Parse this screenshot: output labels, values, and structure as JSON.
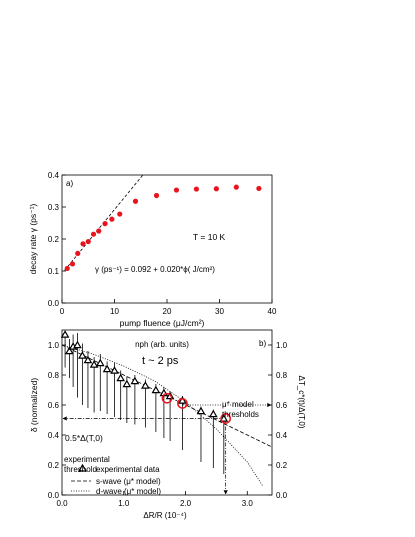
{
  "chart_data": [
    {
      "type": "scatter",
      "panel_label": "a)",
      "xlabel": "pump fluence (μJ/cm²)",
      "ylabel": "decay rate γ (ps⁻¹)",
      "x2label": "nph (arb. units)",
      "xlim": [
        0,
        40
      ],
      "ylim": [
        0,
        0.4
      ],
      "xticks": [
        "0",
        "10",
        "20",
        "30",
        "40"
      ],
      "yticks": [
        "0.0",
        "0.1",
        "0.2",
        "0.3",
        "0.4"
      ],
      "xtick_values": [
        0,
        10,
        20,
        30,
        40
      ],
      "ytick_values": [
        0,
        0.1,
        0.2,
        0.3,
        0.4
      ],
      "series": [
        {
          "color": "#e8141e",
          "x": [
            1.0,
            2.0,
            3.0,
            4.0,
            5.0,
            6.0,
            7.0,
            8.2,
            9.5,
            11.0,
            14.0,
            18.0,
            21.8,
            25.6,
            29.4,
            33.2,
            37.5
          ],
          "y": [
            0.108,
            0.122,
            0.155,
            0.185,
            0.192,
            0.215,
            0.225,
            0.248,
            0.262,
            0.278,
            0.318,
            0.336,
            0.353,
            0.356,
            0.357,
            0.362,
            0.358
          ]
        }
      ],
      "fit": {
        "intercept": 0.092,
        "slope": 0.02,
        "x_range": [
          0.5,
          15.5
        ],
        "style": "dashed"
      },
      "annotations": {
        "temperature": "T = 10 K",
        "equation": "γ (ps⁻¹) = 0.092 + 0.020*ϕ( J/cm²)"
      }
    },
    {
      "type": "scatter",
      "panel_label": "b)",
      "title": "t ~ 2 ps",
      "xlabel": "ΔR/R (10⁻⁴)",
      "ylabel": "δ (normalized)",
      "y2label": "ΔT_c*(t)/Δ(T,0)",
      "xlim": [
        0,
        3.4
      ],
      "ylim": [
        0,
        1.1
      ],
      "xticks": [
        "0.0",
        "1.0",
        "2.0",
        "3.0"
      ],
      "yticks": [
        "0.0",
        "0.2",
        "0.4",
        "0.6",
        "0.8",
        "1.0"
      ],
      "y2ticks": [
        "0.0",
        "0.2",
        "0.4",
        "0.6",
        "0.8",
        "1.0"
      ],
      "xtick_values": [
        0,
        1,
        2,
        3
      ],
      "ytick_values": [
        0,
        0.2,
        0.4,
        0.6,
        0.8,
        1.0
      ],
      "experimental": {
        "x": [
          0.05,
          0.12,
          0.18,
          0.25,
          0.33,
          0.42,
          0.52,
          0.62,
          0.73,
          0.85,
          0.95,
          1.05,
          1.18,
          1.35,
          1.52,
          1.65,
          1.75,
          1.95,
          2.25,
          2.45,
          2.62
        ],
        "y": [
          1.07,
          0.96,
          0.99,
          1.0,
          0.93,
          0.9,
          0.87,
          0.88,
          0.84,
          0.83,
          0.78,
          0.74,
          0.76,
          0.73,
          0.7,
          0.68,
          0.66,
          0.63,
          0.56,
          0.54,
          0.51
        ],
        "err_low": [
          0.85,
          0.78,
          0.72,
          0.65,
          0.6,
          0.58,
          0.55,
          0.56,
          0.54,
          0.52,
          0.5,
          0.48,
          0.47,
          0.45,
          0.42,
          0.38,
          0.36,
          0.3,
          0.22,
          0.18,
          0.14
        ],
        "err_high": [
          1.09,
          1.04,
          1.07,
          1.08,
          1.01,
          0.96,
          0.92,
          0.94,
          0.89,
          0.88,
          0.83,
          0.79,
          0.8,
          0.77,
          0.74,
          0.72,
          0.69,
          0.66,
          0.59,
          0.57,
          0.54
        ]
      },
      "s_wave": {
        "x": [
          0.0,
          3.4
        ],
        "y": [
          1.0,
          0.32
        ],
        "style": "dashed"
      },
      "d_wave": {
        "x": [
          0.0,
          0.5,
          1.0,
          1.5,
          2.0,
          2.5,
          3.0,
          3.25
        ],
        "y": [
          1.0,
          0.94,
          0.86,
          0.76,
          0.62,
          0.44,
          0.22,
          0.06
        ],
        "style": "dotted"
      },
      "threshold_markers": {
        "color": "#e8141e",
        "x": [
          1.7,
          1.95,
          2.65
        ],
        "y": [
          0.645,
          0.61,
          0.51
        ]
      },
      "threshold_y": 0.6,
      "threshold_x": 2.65,
      "annotations": {
        "half_gap": "0.5*Δ(T,0)",
        "experimental_threshold": [
          "experimental",
          "threshold"
        ],
        "model_thresholds": [
          "μ* model",
          "thresholds"
        ]
      },
      "legend": {
        "position": "bottom-left",
        "entries": [
          "experimental data",
          "s-wave (μ* model)",
          "d-wave (μ* model)"
        ]
      }
    }
  ]
}
